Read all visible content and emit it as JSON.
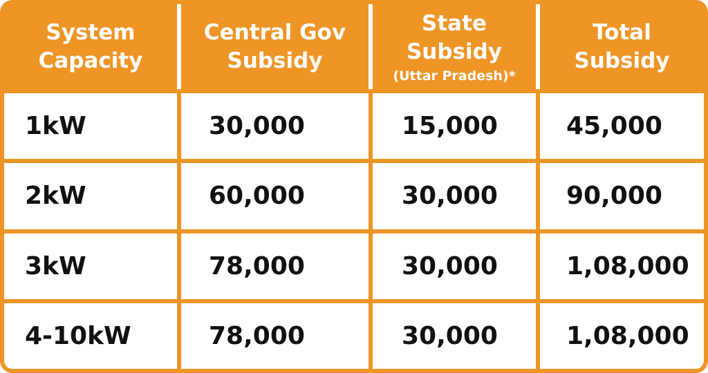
{
  "table": {
    "headers": {
      "capacity": [
        "System",
        "Capacity"
      ],
      "central": [
        "Central Gov",
        "Subsidy"
      ],
      "state": [
        "State",
        "Subsidy"
      ],
      "state_note": "(Uttar Pradesh)*",
      "total": [
        "Total",
        "Subsidy"
      ]
    },
    "rows": [
      {
        "capacity": "1kW",
        "central": "30,000",
        "state": "15,000",
        "total": "45,000"
      },
      {
        "capacity": "2kW",
        "central": "60,000",
        "state": "30,000",
        "total": "90,000"
      },
      {
        "capacity": "3kW",
        "central": "78,000",
        "state": "30,000",
        "total": "1,08,000"
      },
      {
        "capacity": "4-10kW",
        "central": "78,000",
        "state": "30,000",
        "total": "1,08,000"
      }
    ]
  },
  "colors": {
    "header_bg": "#ee9526",
    "header_text": "#ffffff",
    "cell_bg": "#ffffff",
    "cell_text": "#111111"
  }
}
